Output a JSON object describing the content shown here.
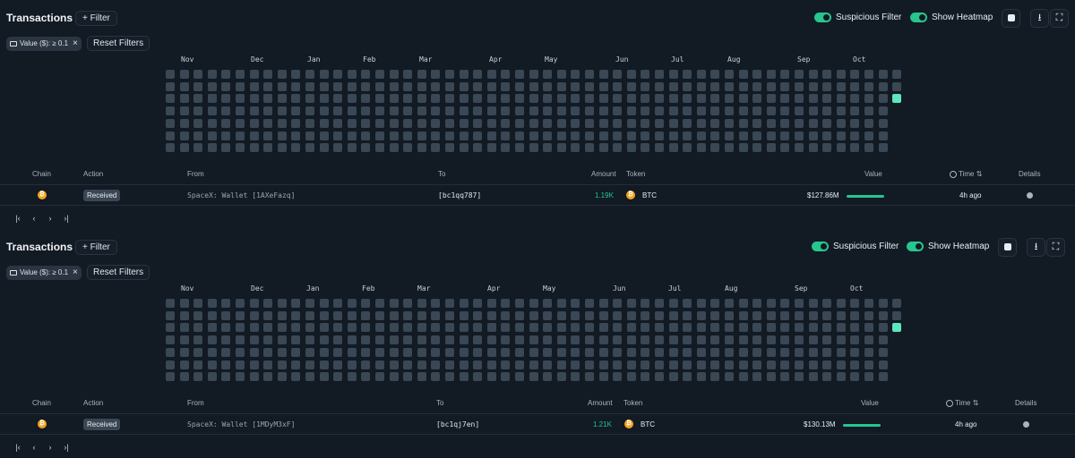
{
  "panels": [
    {
      "title": "Transactions",
      "filter_label": "+ Filter",
      "chip_label": "Value ($): ≥ 0.1",
      "reset_label": "Reset Filters",
      "toggle1_label": "Suspicious Filter",
      "toggle2_label": "Show Heatmap",
      "months": [
        "Nov",
        "Dec",
        "Jan",
        "Feb",
        "Mar",
        "Apr",
        "May",
        "Jun",
        "Jul",
        "Aug",
        "Sep",
        "Oct"
      ],
      "headers": {
        "chain": "Chain",
        "action": "Action",
        "from": "From",
        "to": "To",
        "amount": "Amount",
        "token": "Token",
        "value": "Value",
        "time": "Time",
        "details": "Details"
      },
      "row": {
        "action": "Received",
        "from": "SpaceX: Wallet [1AXeFazq]",
        "to": "[bc1qq787]",
        "amount": "1.19K",
        "token": "BTC",
        "value": "$127.86M",
        "time": "4h ago"
      }
    },
    {
      "title": "Transactions",
      "filter_label": "+ Filter",
      "chip_label": "Value ($): ≥ 0.1",
      "reset_label": "Reset Filters",
      "toggle1_label": "Suspicious Filter",
      "toggle2_label": "Show Heatmap",
      "months": [
        "Nov",
        "Dec",
        "Jan",
        "Feb",
        "Mar",
        "Apr",
        "May",
        "Jun",
        "Jul",
        "Aug",
        "Sep",
        "Oct"
      ],
      "headers": {
        "chain": "Chain",
        "action": "Action",
        "from": "From",
        "to": "To",
        "amount": "Amount",
        "token": "Token",
        "value": "Value",
        "time": "Time",
        "details": "Details"
      },
      "row": {
        "action": "Received",
        "from": "SpaceX: Wallet [1MDyM3xF]",
        "to": "[bc1qj7en]",
        "amount": "1.21K",
        "token": "BTC",
        "value": "$130.13M",
        "time": "4h ago"
      }
    }
  ],
  "colors": {
    "accent": "#26c68d",
    "heat_high": "#5ee6bd",
    "cell": "#3a4754",
    "btc": "#f3a31d"
  }
}
